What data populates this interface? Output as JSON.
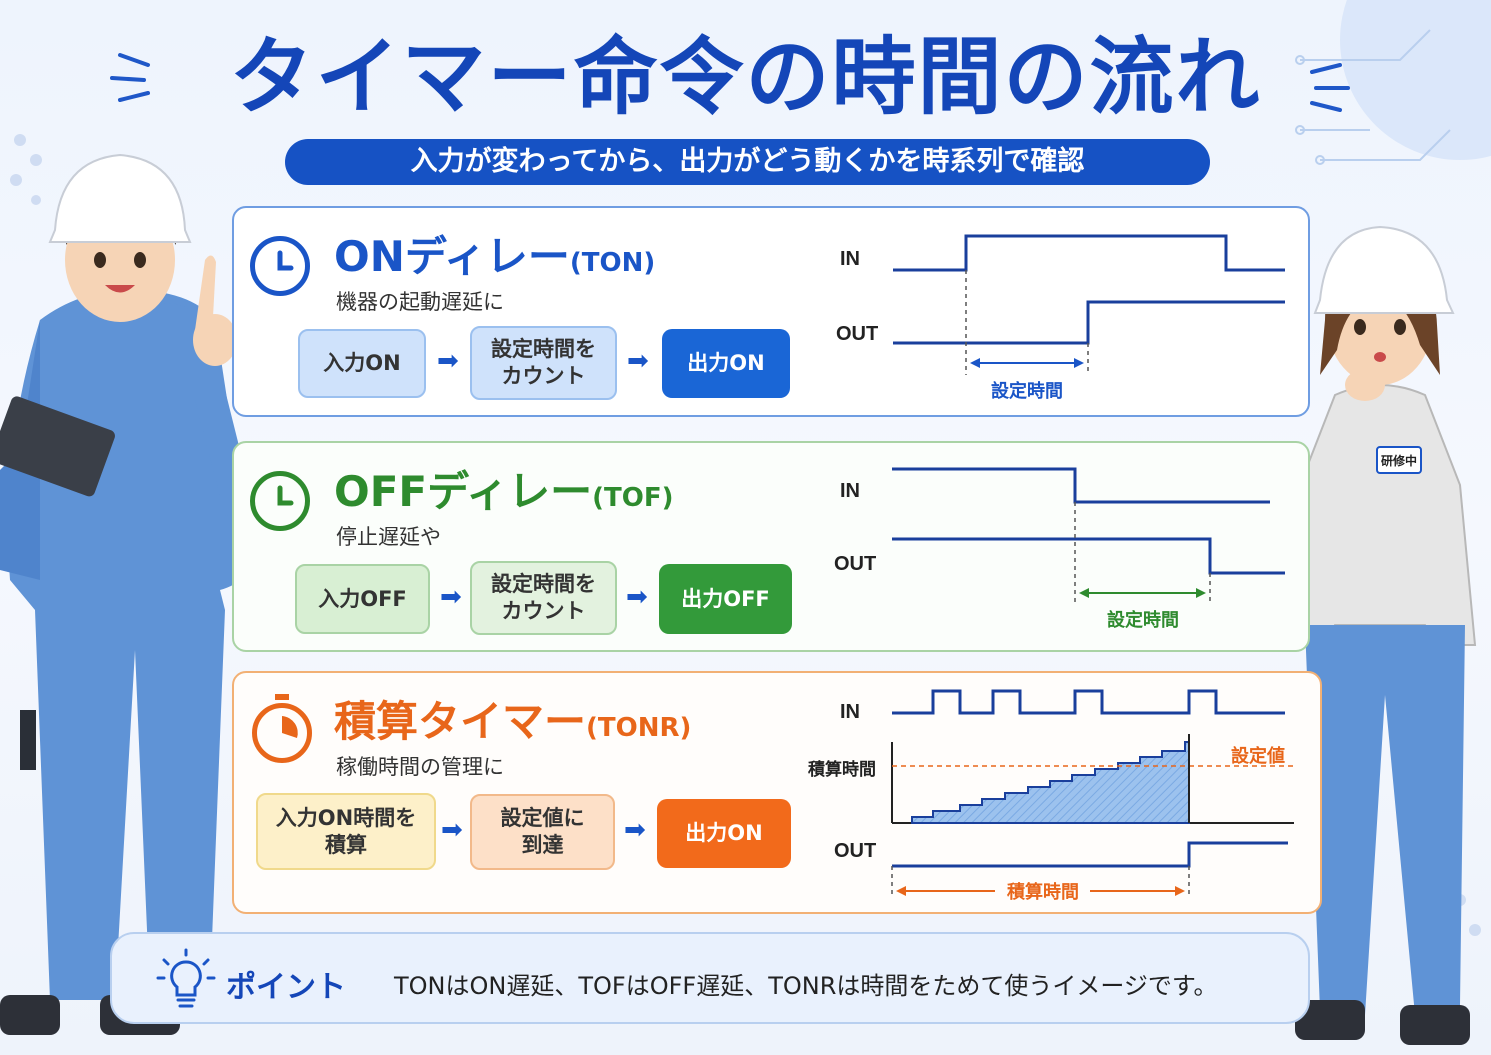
{
  "title": "タイマー命令の時間の流れ",
  "subtitle": "入力が変わってから、出力がどう動くかを時系列で確認",
  "ton": {
    "heading": "ONディレー",
    "code": "(TON)",
    "desc": "機器の起動遅延に",
    "steps": [
      "入力ON",
      "設定時間を\nカウント",
      "出力ON"
    ],
    "sig_in": "IN",
    "sig_out": "OUT",
    "span_label": "設定時間",
    "color": "#1a55c7"
  },
  "tof": {
    "heading": "OFFディレー",
    "code": "(TOF)",
    "desc": "停止遅延や",
    "steps": [
      "入力OFF",
      "設定時間を\nカウント",
      "出力OFF"
    ],
    "sig_in": "IN",
    "sig_out": "OUT",
    "span_label": "設定時間",
    "color": "#2e8b2e"
  },
  "tonr": {
    "heading": "積算タイマー",
    "code": "(TONR)",
    "desc": "稼働時間の管理に",
    "steps": [
      "入力ON時間を\n積算",
      "設定値に\n到達",
      "出力ON"
    ],
    "sig_in": "IN",
    "sig_acc": "積算時間",
    "sig_out": "OUT",
    "setpoint_label": "設定値",
    "span_label": "積算時間",
    "color": "#e8661a"
  },
  "point": {
    "label": "ポイント",
    "text": "TONはON遅延、TOFはOFF遅延、TONRは時間をためて使うイメージです。"
  },
  "badge": "研修中"
}
